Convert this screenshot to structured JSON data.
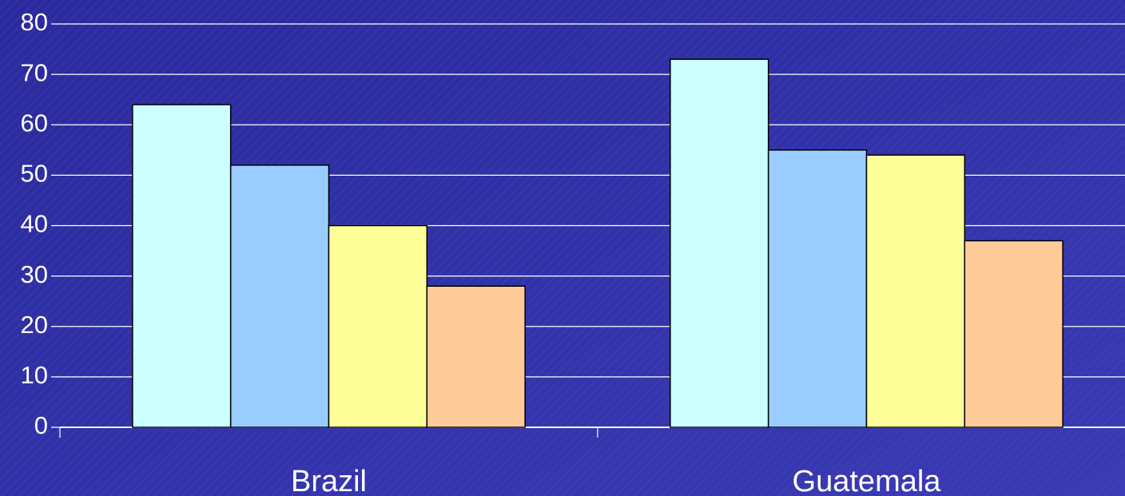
{
  "chart_data": {
    "type": "bar",
    "categories": [
      "Brazil",
      "Guatemala"
    ],
    "series": [
      {
        "color": "#ccffff",
        "values": [
          64,
          73
        ]
      },
      {
        "color": "#99ccff",
        "values": [
          52,
          55
        ]
      },
      {
        "color": "#ffff99",
        "values": [
          40,
          54
        ]
      },
      {
        "color": "#ffcc99",
        "values": [
          28,
          37
        ]
      }
    ],
    "ylim": [
      0,
      80
    ],
    "yticks": [
      0,
      10,
      20,
      30,
      40,
      50,
      60,
      70,
      80
    ],
    "grid": true
  }
}
